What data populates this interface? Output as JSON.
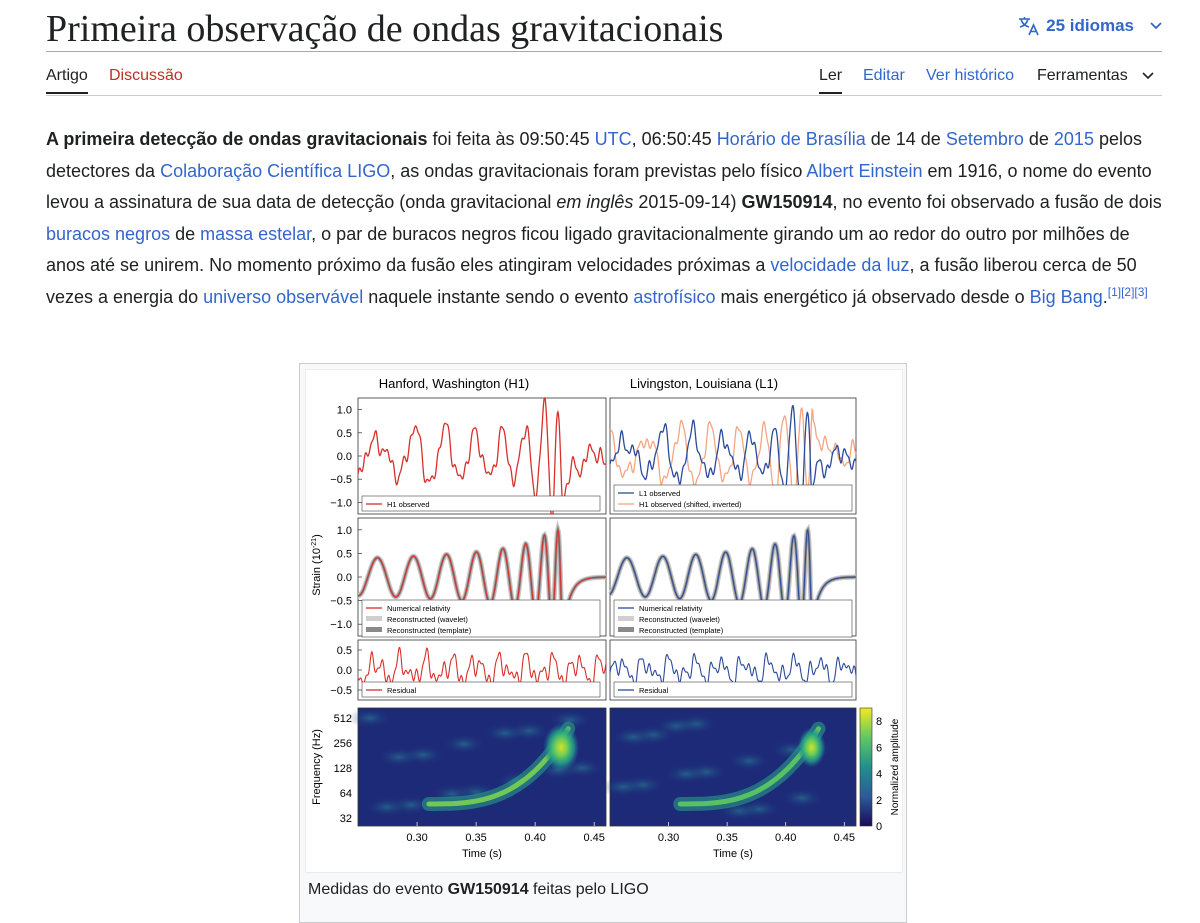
{
  "page": {
    "title": "Primeira observação de ondas gravitacionais",
    "languages": "25 idiomas",
    "tabs_left": [
      "Artigo",
      "Discussão"
    ],
    "tabs_right": [
      "Ler",
      "Editar",
      "Ver histórico",
      "Ferramentas"
    ]
  },
  "intro": [
    {
      "b": "A primeira detecção de ondas gravitacionais"
    },
    {
      "t": " foi feita às 09:50:45 "
    },
    {
      "a": "UTC"
    },
    {
      "t": ", 06:50:45 "
    },
    {
      "a": "Horário de Brasília"
    },
    {
      "t": " de 14 de "
    },
    {
      "a": "Setembro"
    },
    {
      "t": " de "
    },
    {
      "a": "2015"
    },
    {
      "t": " pelos detectores da "
    },
    {
      "a": "Colaboração Científica LIGO"
    },
    {
      "t": ", as ondas gravitacionais foram previstas pelo físico "
    },
    {
      "a": "Albert Einstein"
    },
    {
      "t": " em 1916, o nome do evento levou a assinatura de sua data de detecção (onda gravitacional "
    },
    {
      "i": "em inglês"
    },
    {
      "t": " 2015-09-14) "
    },
    {
      "b": "GW150914"
    },
    {
      "t": ", no evento foi observado a fusão de dois "
    },
    {
      "a": "buracos negros"
    },
    {
      "t": " de "
    },
    {
      "a": "massa estelar"
    },
    {
      "t": ", o par de buracos negros ficou ligado gravitacionalmente girando um ao redor do outro por milhões de anos até se unirem. No momento próximo da fusão eles atingiram velocidades próximas a "
    },
    {
      "a": "velocidade da luz"
    },
    {
      "t": ", a fusão liberou cerca de 50 vezes a energia do "
    },
    {
      "a": "universo observável"
    },
    {
      "t": " naquele instante sendo o evento "
    },
    {
      "a": "astrofísico"
    },
    {
      "t": " mais energético já observado desde o "
    },
    {
      "a": "Big Bang"
    },
    {
      "t": "."
    },
    {
      "sup": "[1][2][3]"
    }
  ],
  "figure": {
    "caption": [
      {
        "t": "Medidas do evento "
      },
      {
        "b": "GW150914"
      },
      {
        "t": " feitas pelo LIGO"
      }
    ],
    "col_titles": [
      "Hanford, Washington (H1)",
      "Livingston, Louisiana (L1)"
    ],
    "strain_label": "Strain (10",
    "strain_exp": "-21",
    "strain_close": ")",
    "freq_label": "Frequency (Hz)",
    "time_label": "Time (s)",
    "colorbar_label": "Normalized amplitude",
    "row1_ticks": [
      "1.0",
      "0.5",
      "0.0",
      "−0.5",
      "−1.0"
    ],
    "row2_ticks": [
      "1.0",
      "0.5",
      "0.0",
      "−0.5",
      "−1.0"
    ],
    "row3_ticks": [
      "0.5",
      "0.0",
      "−0.5"
    ],
    "freq_ticks": [
      "512",
      "256",
      "128",
      "64",
      "32"
    ],
    "colorbar_ticks": [
      "8",
      "6",
      "4",
      "2",
      "0"
    ],
    "time_ticks": [
      "0.30",
      "0.35",
      "0.40",
      "0.45"
    ],
    "legend": {
      "h1_observed": "H1 observed",
      "l1_observed": "L1 observed",
      "h1_shifted": "H1 observed (shifted, inverted)",
      "numerical_relativity": "Numerical relativity",
      "recon_wavelet": "Reconstructed (wavelet)",
      "recon_template": "Reconstructed (template)",
      "residual": "Residual"
    },
    "colors": {
      "h1": "#d7302a",
      "l1": "#2b4a9b",
      "h1_inverted": "#f4a582"
    }
  }
}
